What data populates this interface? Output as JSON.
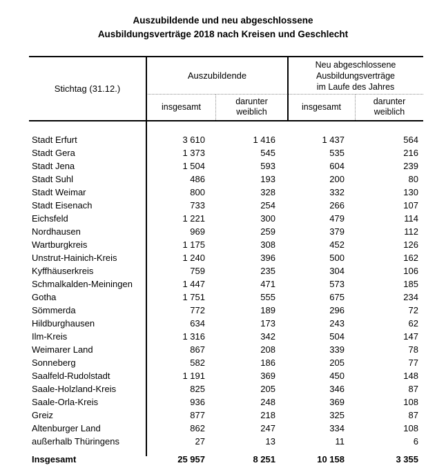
{
  "title": {
    "line1": "Auszubildende und neu abgeschlossene",
    "line2": "Ausbildungsverträge 2018 nach Kreisen und Geschlecht"
  },
  "colors": {
    "text": "#000000",
    "solid_rule": "#000000",
    "dotted_rule": "#8a8a8a",
    "background": "#ffffff"
  },
  "table": {
    "corner_label": "Stichtag (31.12.)",
    "group1": {
      "label": "Auszubildende"
    },
    "group2": {
      "line1": "Neu abgeschlossene",
      "line2": "Ausbildungsverträge",
      "line3": "im Laufe des Jahres"
    },
    "subheaders": [
      {
        "line1": "insgesamt",
        "line2": ""
      },
      {
        "line1": "darunter",
        "line2": "weiblich"
      },
      {
        "line1": "insgesamt",
        "line2": ""
      },
      {
        "line1": "darunter",
        "line2": "weiblich"
      }
    ],
    "rows": [
      {
        "name": "Stadt Erfurt",
        "values": [
          "3 610",
          "1 416",
          "1 437",
          "564"
        ]
      },
      {
        "name": "Stadt Gera",
        "values": [
          "1 373",
          "545",
          "535",
          "216"
        ]
      },
      {
        "name": "Stadt Jena",
        "values": [
          "1 504",
          "593",
          "604",
          "239"
        ]
      },
      {
        "name": "Stadt Suhl",
        "values": [
          "486",
          "193",
          "200",
          "80"
        ]
      },
      {
        "name": "Stadt Weimar",
        "values": [
          "800",
          "328",
          "332",
          "130"
        ]
      },
      {
        "name": "Stadt Eisenach",
        "values": [
          "733",
          "254",
          "266",
          "107"
        ]
      },
      {
        "name": "Eichsfeld",
        "values": [
          "1 221",
          "300",
          "479",
          "114"
        ]
      },
      {
        "name": "Nordhausen",
        "values": [
          "969",
          "259",
          "379",
          "112"
        ]
      },
      {
        "name": "Wartburgkreis",
        "values": [
          "1 175",
          "308",
          "452",
          "126"
        ]
      },
      {
        "name": "Unstrut-Hainich-Kreis",
        "values": [
          "1 240",
          "396",
          "500",
          "162"
        ]
      },
      {
        "name": "Kyffhäuserkreis",
        "values": [
          "759",
          "235",
          "304",
          "106"
        ]
      },
      {
        "name": "Schmalkalden-Meiningen",
        "values": [
          "1 447",
          "471",
          "573",
          "185"
        ]
      },
      {
        "name": "Gotha",
        "values": [
          "1 751",
          "555",
          "675",
          "234"
        ]
      },
      {
        "name": "Sömmerda",
        "values": [
          "772",
          "189",
          "296",
          "72"
        ]
      },
      {
        "name": "Hildburghausen",
        "values": [
          "634",
          "173",
          "243",
          "62"
        ]
      },
      {
        "name": "Ilm-Kreis",
        "values": [
          "1 316",
          "342",
          "504",
          "147"
        ]
      },
      {
        "name": "Weimarer Land",
        "values": [
          "867",
          "208",
          "339",
          "78"
        ]
      },
      {
        "name": "Sonneberg",
        "values": [
          "582",
          "186",
          "205",
          "77"
        ]
      },
      {
        "name": "Saalfeld-Rudolstadt",
        "values": [
          "1 191",
          "369",
          "450",
          "148"
        ]
      },
      {
        "name": "Saale-Holzland-Kreis",
        "values": [
          "825",
          "205",
          "346",
          "87"
        ]
      },
      {
        "name": "Saale-Orla-Kreis",
        "values": [
          "936",
          "248",
          "369",
          "108"
        ]
      },
      {
        "name": "Greiz",
        "values": [
          "877",
          "218",
          "325",
          "87"
        ]
      },
      {
        "name": "Altenburger Land",
        "values": [
          "862",
          "247",
          "334",
          "108"
        ]
      },
      {
        "name": "außerhalb Thüringens",
        "values": [
          "27",
          "13",
          "11",
          "6"
        ]
      }
    ],
    "total": {
      "name": "Insgesamt",
      "values": [
        "25 957",
        "8 251",
        "10 158",
        "3 355"
      ]
    }
  }
}
